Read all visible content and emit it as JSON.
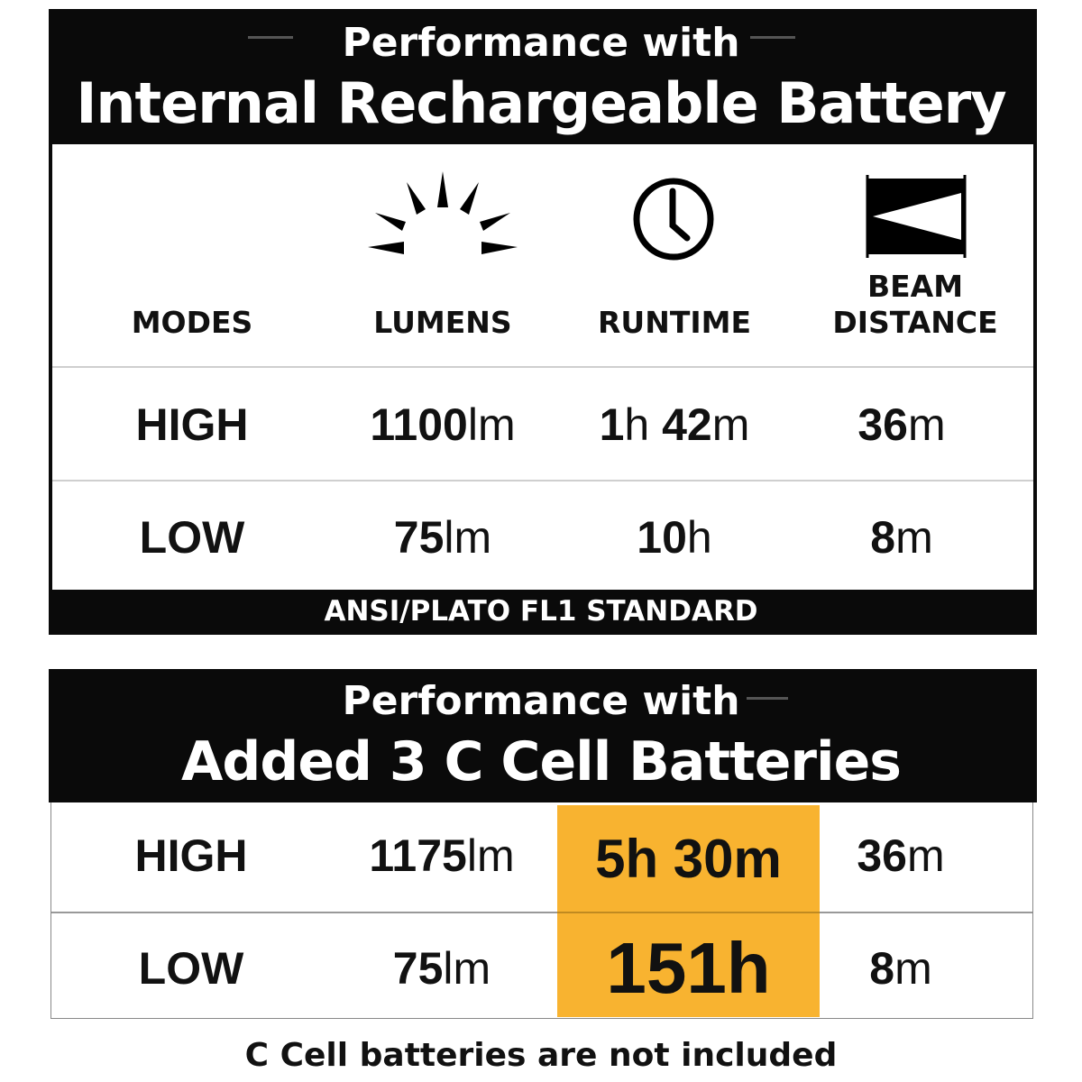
{
  "section1": {
    "title_line1": "Performance with",
    "title_line2": "Internal Rechargeable Battery",
    "headers": {
      "modes": "MODES",
      "lumens": "LUMENS",
      "runtime": "RUNTIME",
      "beam_line1": "BEAM",
      "beam_line2": "DISTANCE"
    },
    "icons": {
      "lumens": "sun-rays-icon",
      "runtime": "clock-icon",
      "beam": "beam-distance-icon"
    },
    "rows": [
      {
        "mode": "HIGH",
        "lumens": "1100",
        "lumens_unit": "lm",
        "runtime_h": "1",
        "runtime_h_unit": "h",
        "runtime_m": "42",
        "runtime_m_unit": "m",
        "beam": "36",
        "beam_unit": "m"
      },
      {
        "mode": "LOW",
        "lumens": "75",
        "lumens_unit": "lm",
        "runtime_h": "10",
        "runtime_h_unit": "h",
        "beam": "8",
        "beam_unit": "m"
      }
    ],
    "footer": "ANSI/PLATO FL1 STANDARD"
  },
  "section2": {
    "title_line1": "Performance with",
    "title_line2": "Added 3 C Cell Batteries",
    "highlight_color": "#f8b330",
    "rows": [
      {
        "mode": "HIGH",
        "lumens": "1175",
        "lumens_unit": "lm",
        "runtime": "5h 30m",
        "beam": "36",
        "beam_unit": "m"
      },
      {
        "mode": "LOW",
        "lumens": "75",
        "lumens_unit": "lm",
        "runtime": "151h",
        "beam": "8",
        "beam_unit": "m"
      }
    ]
  },
  "caption": "C Cell batteries are not included"
}
